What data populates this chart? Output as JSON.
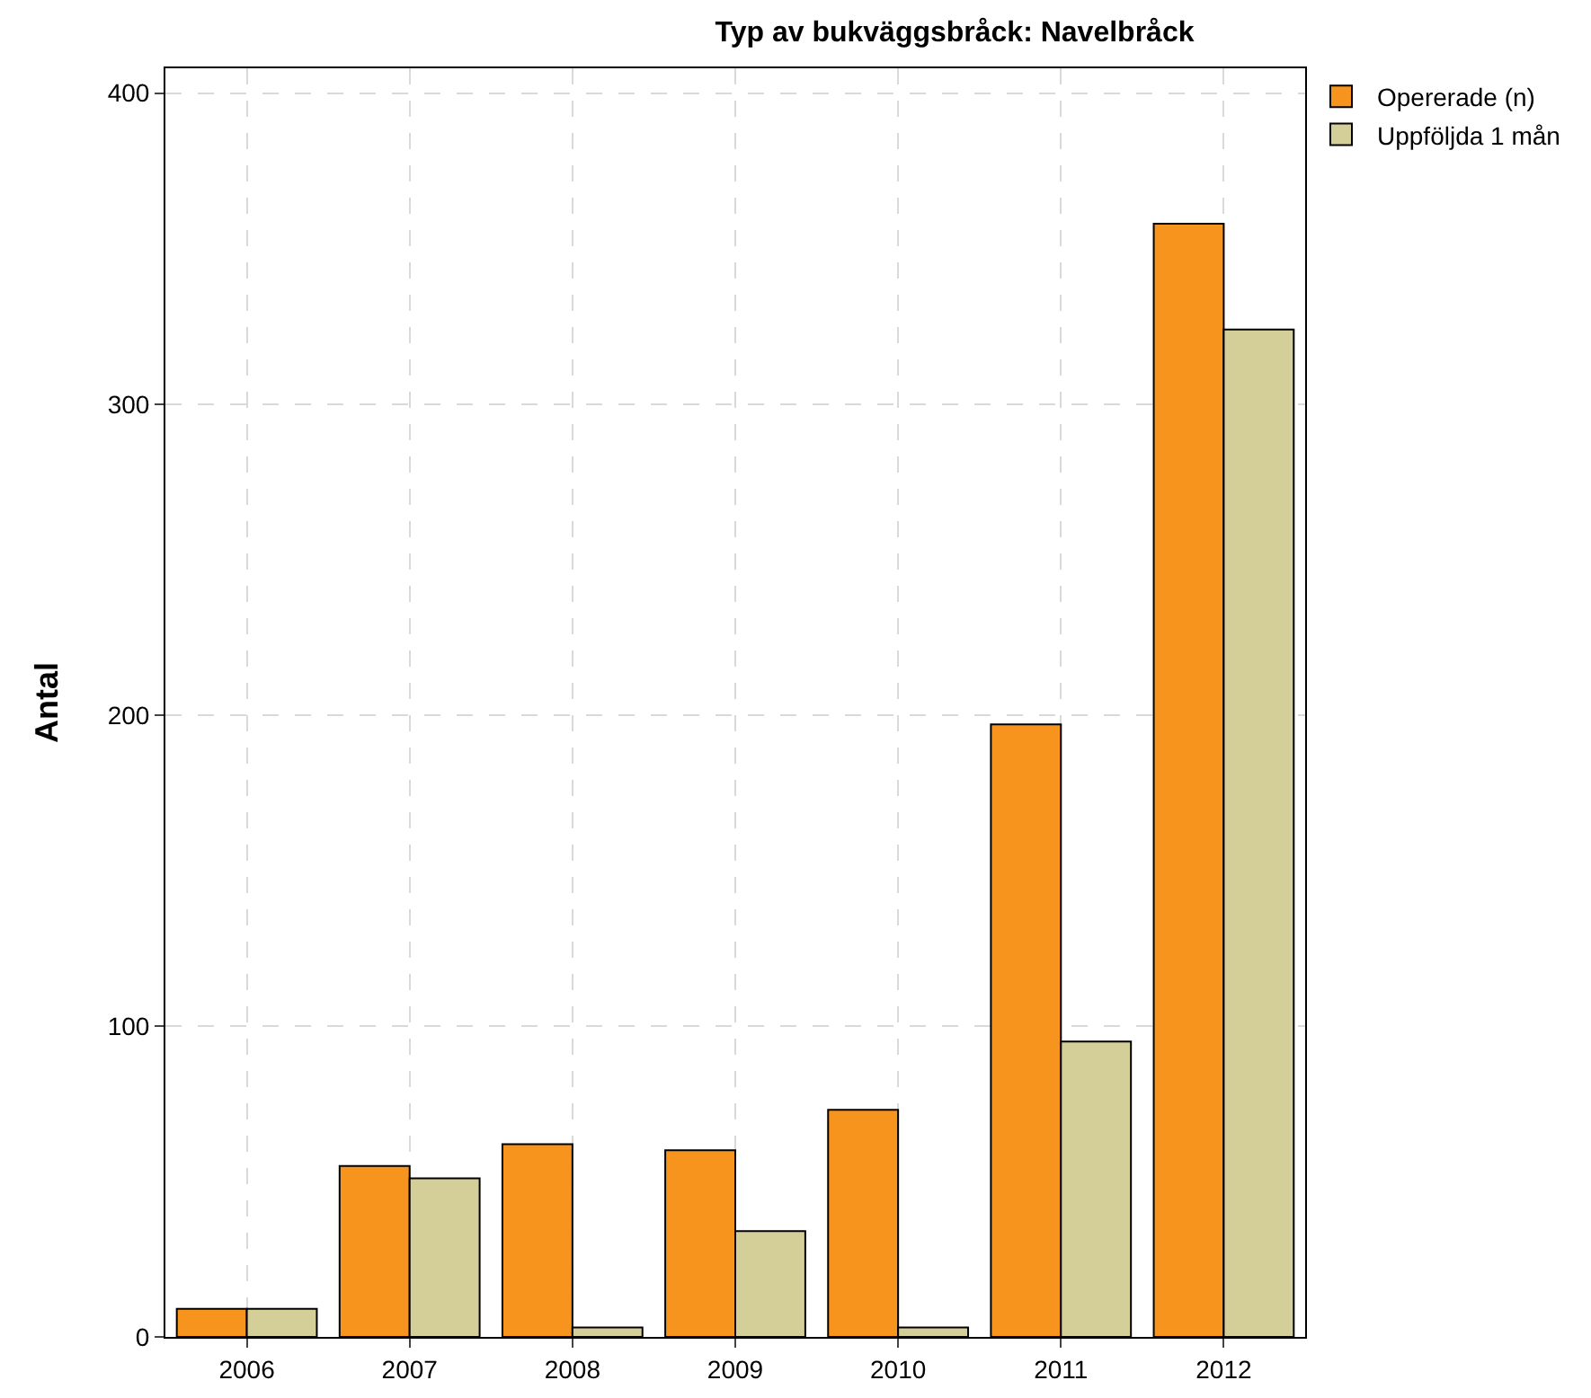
{
  "chart_data": {
    "type": "bar",
    "title": "Typ av bukväggsbråck: Navelbråck",
    "ylabel": "Antal",
    "categories": [
      "2006",
      "2007",
      "2008",
      "2009",
      "2010",
      "2011",
      "2012"
    ],
    "series": [
      {
        "name": "Opererade (n)",
        "color": "#f7941d",
        "values": [
          9,
          55,
          62,
          60,
          73,
          197,
          358
        ]
      },
      {
        "name": "Uppföljda 1 mån",
        "color": "#d4cf99",
        "values": [
          9,
          51,
          3,
          34,
          3,
          95,
          324
        ]
      }
    ],
    "ylim": [
      0,
      408
    ],
    "yticks": [
      0,
      100,
      200,
      300,
      400
    ],
    "grid": true,
    "legend": "top right"
  }
}
